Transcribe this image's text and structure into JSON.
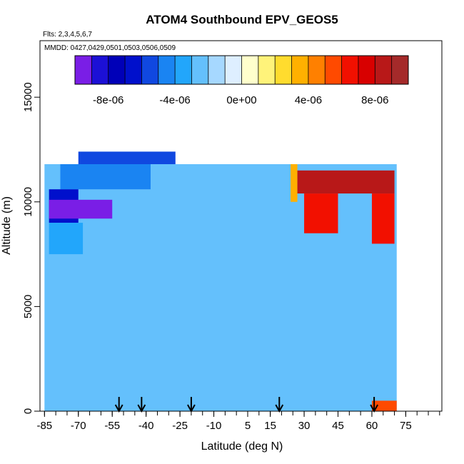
{
  "chart_data": {
    "type": "heatmap",
    "title": "ATOM4 Southbound EPV_GEOS5",
    "subtitle_flights": "Flts: 2,3,4,5,6,7",
    "subtitle_dates": "MMDD: 0427,0429,0501,0503,0506,0509",
    "xlabel": "Latitude (deg N)",
    "ylabel": "Altitude (m)",
    "xlim": [
      -87,
      91
    ],
    "ylim": [
      0,
      17700
    ],
    "x_tick_values": [
      -85,
      -70,
      -55,
      -40,
      -25,
      -10,
      5,
      15,
      30,
      45,
      60,
      75
    ],
    "x_tick_labels": [
      "-85",
      "-70",
      "-55",
      "-40",
      "-25",
      "-10",
      "5",
      "15",
      "30",
      "45",
      "60",
      "75"
    ],
    "y_tick_values": [
      0,
      5000,
      10000,
      15000
    ],
    "y_tick_labels": [
      "0",
      "5000",
      "10000",
      "15000"
    ],
    "colorbar": {
      "range": [
        -1e-05,
        1e-05
      ],
      "tick_values": [
        -8e-06,
        -4e-06,
        0,
        4e-06,
        8e-06
      ],
      "tick_labels": [
        "-8e-06",
        "-4e-06",
        "0e+00",
        "4e-06",
        "8e-06"
      ],
      "colors": [
        "#7a1ee6",
        "#1c10d6",
        "#0000b8",
        "#0010cc",
        "#1048e0",
        "#1a84f2",
        "#22a6fb",
        "#64c0fc",
        "#a6d8ff",
        "#deefff",
        "#ffffcc",
        "#fff37a",
        "#ffdc2e",
        "#ffb000",
        "#ff8000",
        "#ff4a00",
        "#f21000",
        "#d80000",
        "#b81818",
        "#a52a2a"
      ]
    },
    "regions": [
      {
        "name": "background",
        "lat": [
          -85,
          71
        ],
        "alt": [
          0,
          11800
        ],
        "value": -2.5e-06
      },
      {
        "name": "southern-upper-1",
        "lat": [
          -78,
          -38
        ],
        "alt": [
          10600,
          11800
        ],
        "value": -5e-06
      },
      {
        "name": "southern-upper-2",
        "lat": [
          -70,
          -27
        ],
        "alt": [
          11800,
          12400
        ],
        "value": -5.5e-06
      },
      {
        "name": "southern-upper-3",
        "lat": [
          -83,
          -70
        ],
        "alt": [
          9000,
          10600
        ],
        "value": -7e-06
      },
      {
        "name": "southern-core",
        "lat": [
          -83,
          -55
        ],
        "alt": [
          9200,
          10100
        ],
        "value": -9.5e-06
      },
      {
        "name": "southern-mid",
        "lat": [
          -83,
          -68
        ],
        "alt": [
          7500,
          9000
        ],
        "value": -4e-06
      },
      {
        "name": "northern-edge",
        "lat": [
          24,
          27
        ],
        "alt": [
          10000,
          11800
        ],
        "value": 3e-06
      },
      {
        "name": "northern-upper",
        "lat": [
          27,
          70
        ],
        "alt": [
          10400,
          11500
        ],
        "value": 8.5e-06
      },
      {
        "name": "northern-lower",
        "lat": [
          30,
          45
        ],
        "alt": [
          8500,
          10400
        ],
        "value": 6.5e-06
      },
      {
        "name": "northern-lower-2",
        "lat": [
          60,
          70
        ],
        "alt": [
          8000,
          10400
        ],
        "value": 6e-06
      },
      {
        "name": "northern-surface",
        "lat": [
          60,
          71
        ],
        "alt": [
          0,
          500
        ],
        "value": 5e-06
      }
    ],
    "tropopause_marker_lats": [
      -52,
      -42,
      -20,
      19,
      61
    ],
    "legend_position": "top"
  }
}
